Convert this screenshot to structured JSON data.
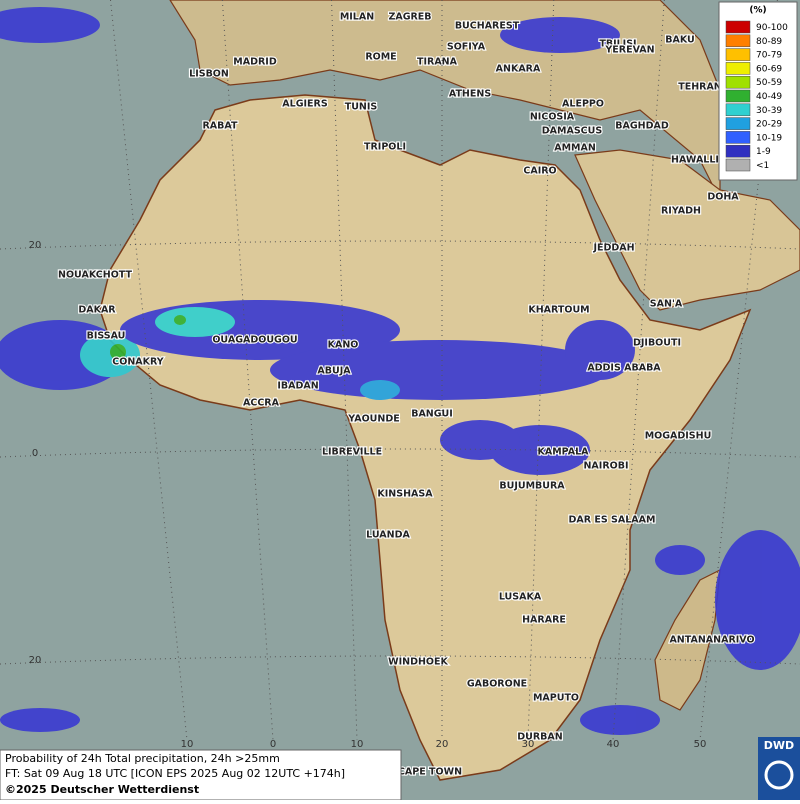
{
  "map": {
    "cities": [
      "MILAN",
      "ZAGREB",
      "BUCHAREST",
      "TBILISI",
      "BAKU",
      "MADRID",
      "ROME",
      "SOFIYA",
      "TIRANA",
      "YEREVAN",
      "LISBON",
      "ANKARA",
      "TEHRAN",
      "ALGIERS",
      "TUNIS",
      "ATHENS",
      "ALEPPO",
      "RABAT",
      "NICOSIA",
      "DAMASCUS",
      "BAGHDAD",
      "TRIPOLI",
      "AMMAN",
      "HAWALLI",
      "CAIRO",
      "DOHA",
      "RIYADH",
      "NOUAKCHOTT",
      "JEDDAH",
      "DAKAR",
      "SAN'A",
      "KHARTOUM",
      "BISSAU",
      "OUAGADOUGOU",
      "DJIBOUTI",
      "KANO",
      "CONAKRY",
      "ABUJA",
      "ADDIS ABABA",
      "IBADAN",
      "ACCRA",
      "YAOUNDE",
      "BANGUI",
      "MOGADISHU",
      "LIBREVILLE",
      "KAMPALA",
      "NAIROBI",
      "KINSHASA",
      "BUJUMBURA",
      "DAR ES SALAAM",
      "LUANDA",
      "LUSAKA",
      "HARARE",
      "ANTANANARIVO",
      "WINDHOEK",
      "GABORONE",
      "MAPUTO",
      "DURBAN",
      "CAPE TOWN"
    ],
    "lat_labels": [
      "20",
      "0",
      "20"
    ],
    "lon_labels": [
      "10",
      "0",
      "10",
      "20",
      "30",
      "40",
      "50"
    ]
  },
  "legend": {
    "title": "(%)",
    "entries": [
      {
        "label": "90-100",
        "color": "#cc0000"
      },
      {
        "label": "80-89",
        "color": "#ff7f00"
      },
      {
        "label": "70-79",
        "color": "#ffc000"
      },
      {
        "label": "60-69",
        "color": "#eeee00"
      },
      {
        "label": "50-59",
        "color": "#a0e000"
      },
      {
        "label": "40-49",
        "color": "#30b030"
      },
      {
        "label": "30-39",
        "color": "#30d0d0"
      },
      {
        "label": "20-29",
        "color": "#20a0e0"
      },
      {
        "label": "10-19",
        "color": "#3060ff"
      },
      {
        "label": "1-9",
        "color": "#3030c0"
      },
      {
        "label": "<1",
        "color": "#b0b0b0"
      }
    ]
  },
  "footer": {
    "line1": "Probability of 24h Total precipitation, 24h >25mm",
    "line2": "FT: Sat 09 Aug 18 UTC [ICON EPS 2025 Aug 02 12UTC +174h]",
    "line3": "©2025 Deutscher Wetterdienst"
  },
  "logo": "DWD"
}
